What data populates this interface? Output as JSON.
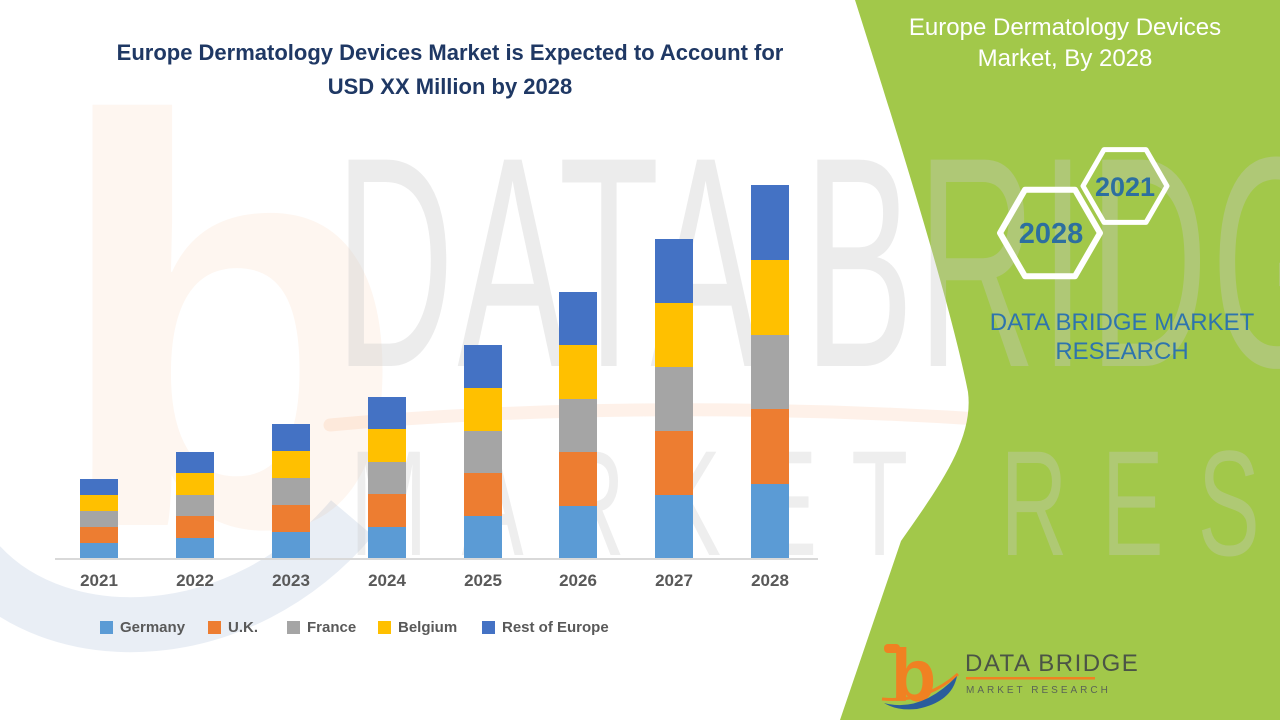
{
  "page": {
    "background_color": "#ffffff",
    "accent_green": "#a2c84a"
  },
  "chart": {
    "title_lines": [
      "Europe Dermatology Devices Market is Expected to Account for",
      "USD XX Million by 2028"
    ],
    "title_color": "#1f3864"
  },
  "chart_data": {
    "type": "bar",
    "stacked": true,
    "title": "Europe Dermatology Devices Market is Expected to Account for USD XX Million by 2028",
    "xlabel": "",
    "ylabel": "",
    "unit": "USD Million (value shown as placeholder 'XX'; series values are relative estimates read from bar heights)",
    "categories": [
      "2021",
      "2022",
      "2023",
      "2024",
      "2025",
      "2026",
      "2027",
      "2028"
    ],
    "series": [
      {
        "name": "Germany",
        "color": "#5b9bd5",
        "values": [
          16,
          21.4,
          27,
          32.4,
          42.8,
          53.4,
          64,
          74.8
        ]
      },
      {
        "name": "U.K.",
        "color": "#ed7d31",
        "values": [
          16,
          21.4,
          27,
          32.4,
          42.8,
          53.4,
          64,
          74.8
        ]
      },
      {
        "name": "France",
        "color": "#a5a5a5",
        "values": [
          16,
          21.4,
          27,
          32.4,
          42.8,
          53.4,
          64,
          74.8
        ]
      },
      {
        "name": "Belgium",
        "color": "#ffc000",
        "values": [
          16,
          21.4,
          27,
          32.4,
          42.8,
          53.4,
          64,
          74.8
        ]
      },
      {
        "name": "Rest of Europe",
        "color": "#4472c4",
        "values": [
          16,
          21.4,
          27,
          32.4,
          42.8,
          53.4,
          64,
          74.8
        ]
      }
    ],
    "totals": [
      80,
      107,
      135,
      162,
      214,
      267,
      320,
      374
    ],
    "ylim": [
      0,
      400
    ],
    "grid": false,
    "y_axis_ticks": "none shown",
    "legend_position": "bottom"
  },
  "legend": {
    "text_color": "#595959"
  },
  "side_panel": {
    "background_color": "#a2c84a",
    "title_lines": [
      "Europe Dermatology Devices",
      "Market, By 2028"
    ],
    "hexagons": [
      {
        "label": "2021"
      },
      {
        "label": "2028"
      }
    ],
    "hexagon_label_color": "#2d6f9f",
    "brand_lines": [
      "DATA BRIDGE MARKET",
      "RESEARCH"
    ],
    "brand_color": "#2e74ad"
  },
  "watermark": {
    "letter": "b",
    "line1": "DATA BRIDGE",
    "line2": "MARKET RESEARCH"
  },
  "footer_logo": {
    "letter": "b",
    "brand": "DATA BRIDGE",
    "tagline": "MARKET RESEARCH"
  }
}
